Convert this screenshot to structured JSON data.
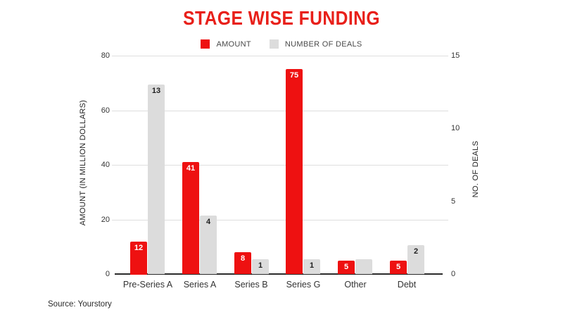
{
  "title": "STAGE WISE FUNDING",
  "legend": {
    "amount": "AMOUNT",
    "deals": "NUMBER OF DEALS"
  },
  "left_axis": {
    "title": "AMOUNT (IN MILLION DOLLARS)",
    "ticks": [
      0,
      20,
      40,
      60,
      80
    ],
    "max": 80
  },
  "right_axis": {
    "title": "NO. OF DEALS",
    "ticks": [
      0,
      5,
      10,
      15
    ],
    "max": 15
  },
  "source": "Source: Yourstory",
  "colors": {
    "title": "#e8201a",
    "amount_bar": "#ee1111",
    "deals_bar": "#dcdcdc",
    "amount_label": "#ffffff",
    "deals_label": "#1f1f1f",
    "grid": "#dedede",
    "baseline": "#2b2b2b"
  },
  "chart_data": {
    "type": "bar",
    "title": "STAGE WISE FUNDING",
    "categories": [
      "Pre-Series A",
      "Series A",
      "Series B",
      "Series G",
      "Other",
      "Debt"
    ],
    "series": [
      {
        "name": "AMOUNT",
        "axis": "left",
        "values": [
          12,
          41,
          8,
          75,
          5,
          5
        ],
        "labels": [
          "12",
          "41",
          "8",
          "75",
          "5",
          "5"
        ]
      },
      {
        "name": "NUMBER OF DEALS",
        "axis": "right",
        "values": [
          13,
          4,
          1,
          1,
          1,
          2
        ],
        "labels": [
          "13",
          "4",
          "1",
          "1",
          "",
          "2"
        ]
      }
    ],
    "left_ylabel": "AMOUNT (IN MILLION DOLLARS)",
    "right_ylabel": "NO. OF DEALS",
    "left_ylim": [
      0,
      80
    ],
    "right_ylim": [
      0,
      15
    ],
    "grid": true,
    "legend_position": "top"
  }
}
